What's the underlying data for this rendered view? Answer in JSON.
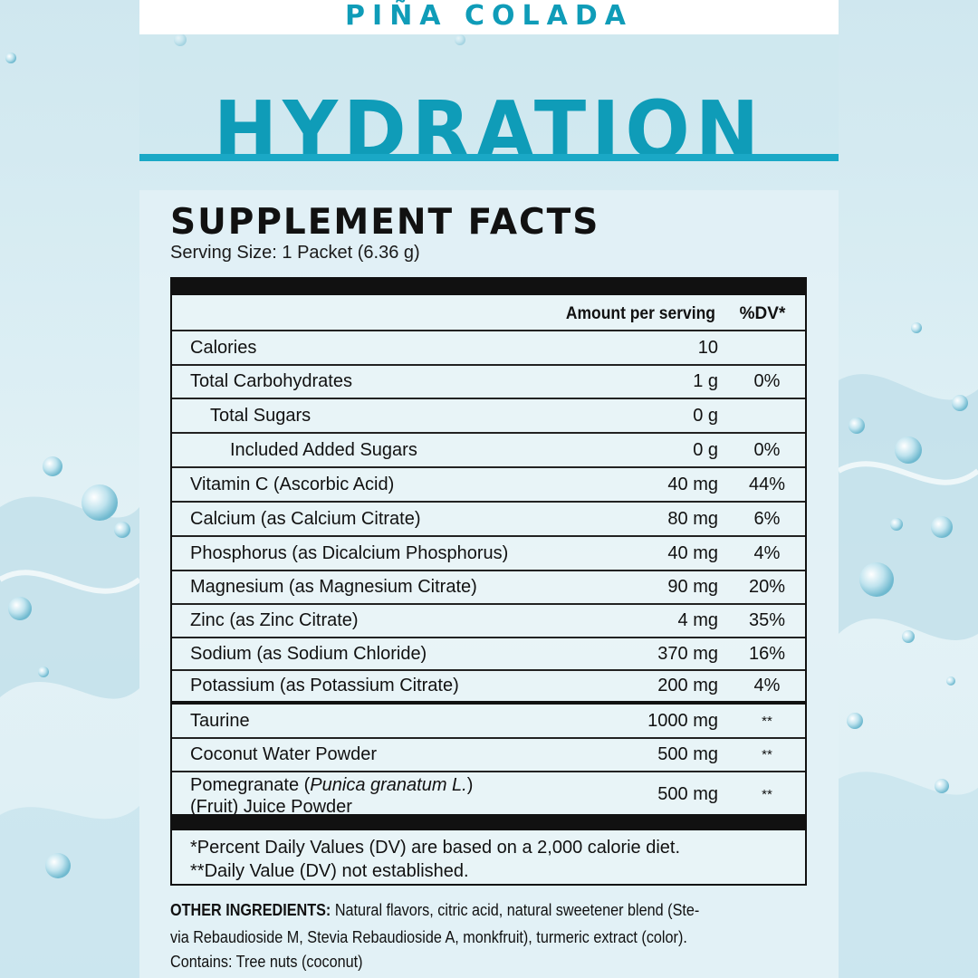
{
  "header": {
    "flavor": "PIÑA COLADA",
    "product": "HYDRATION"
  },
  "facts": {
    "title": "SUPPLEMENT FACTS",
    "serving_size": "Serving Size: 1 Packet (6.36 g)",
    "col_amount": "Amount per serving",
    "col_dv": "%DV*",
    "rows": [
      {
        "name": "Calories",
        "amount": "10",
        "dv": ""
      },
      {
        "name": "Total Carbohydrates",
        "amount": "1 g",
        "dv": "0%"
      },
      {
        "name": "Total Sugars",
        "amount": "0 g",
        "dv": ""
      },
      {
        "name": "Included Added Sugars",
        "amount": "0 g",
        "dv": "0%"
      },
      {
        "name": "Vitamin C (Ascorbic Acid)",
        "amount": "40 mg",
        "dv": "44%"
      },
      {
        "name": "Calcium (as Calcium Citrate)",
        "amount": "80 mg",
        "dv": "6%"
      },
      {
        "name": "Phosphorus (as Dicalcium Phosphorus)",
        "amount": "40 mg",
        "dv": "4%"
      },
      {
        "name": "Magnesium (as Magnesium Citrate)",
        "amount": "90 mg",
        "dv": "20%"
      },
      {
        "name": "Zinc (as Zinc Citrate)",
        "amount": "4 mg",
        "dv": "35%"
      },
      {
        "name": "Sodium (as Sodium Chloride)",
        "amount": "370 mg",
        "dv": "16%"
      },
      {
        "name": "Potassium (as Potassium Citrate)",
        "amount": "200 mg",
        "dv": "4%"
      },
      {
        "name": "Taurine",
        "amount": "1000 mg",
        "dv": "**"
      },
      {
        "name": "Coconut Water Powder",
        "amount": "500 mg",
        "dv": "**"
      },
      {
        "name_part1": "Pomegranate (",
        "name_italic": "Punica granatum L.",
        "name_part2": ")",
        "name_line2": "(Fruit) Juice Powder",
        "amount": "500 mg",
        "dv": "**"
      }
    ],
    "footnote1": "*Percent Daily Values (DV) are based on a 2,000 calorie diet.",
    "footnote2": "**Daily Value (DV) not established."
  },
  "other_ingredients": {
    "label": "OTHER INGREDIENTS:",
    "text_line1": " Natural flavors, citric acid, natural sweetener blend (Ste-",
    "text_line2": "via Rebaudioside M, Stevia Rebaudioside A, monkfruit), turmeric extract (color).",
    "contains": "Contains: Tree nuts (coconut)"
  },
  "colors": {
    "brand": "#0f9cb8",
    "rule": "#1aa8c6"
  }
}
